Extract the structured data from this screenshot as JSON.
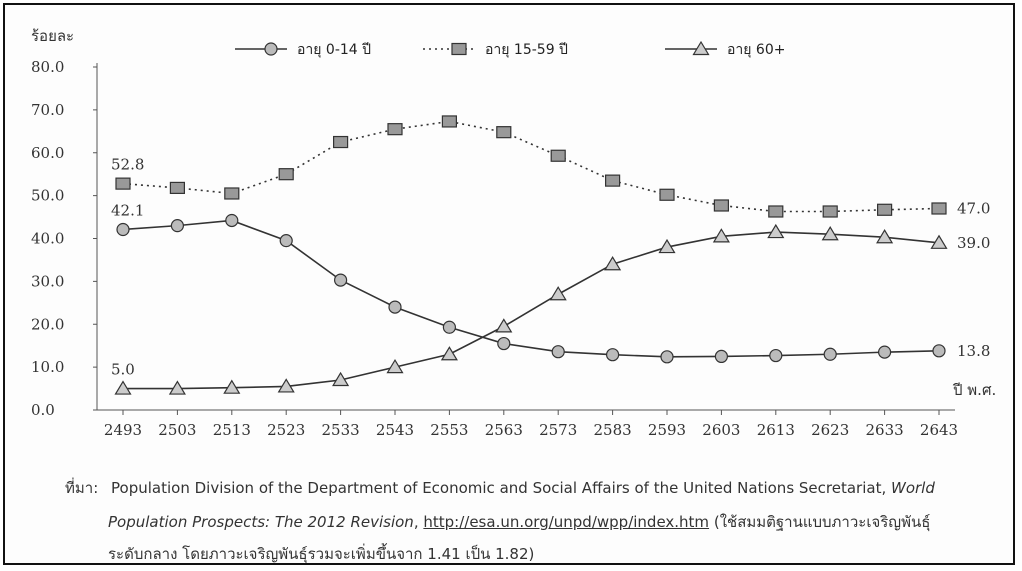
{
  "chart_data": {
    "type": "line",
    "ylabel": "ร้อยละ",
    "xlabel": "ปี พ.ศ.",
    "x": [
      2493,
      2503,
      2513,
      2523,
      2533,
      2543,
      2553,
      2563,
      2573,
      2583,
      2593,
      2603,
      2613,
      2623,
      2633,
      2643
    ],
    "yticks": [
      "0.0",
      "10.0",
      "20.0",
      "30.0",
      "40.0",
      "50.0",
      "60.0",
      "70.0",
      "80.0"
    ],
    "ylim": [
      0,
      80
    ],
    "grid": false,
    "legend_position": "top",
    "series": [
      {
        "name": "อายุ 0-14 ปี",
        "line_style": "solid",
        "marker": "circle",
        "values": [
          42.1,
          43.0,
          44.2,
          39.5,
          30.3,
          24.0,
          19.3,
          15.5,
          13.6,
          12.9,
          12.4,
          12.5,
          12.7,
          13.0,
          13.5,
          13.8
        ]
      },
      {
        "name": "อายุ 15-59 ปี",
        "line_style": "dotted",
        "marker": "square",
        "values": [
          52.8,
          51.8,
          50.5,
          55.0,
          62.5,
          65.5,
          67.3,
          64.8,
          59.3,
          53.5,
          50.2,
          47.7,
          46.3,
          46.3,
          46.7,
          47.0
        ]
      },
      {
        "name": "อายุ 60+",
        "line_style": "solid",
        "marker": "triangle",
        "values": [
          5.0,
          5.0,
          5.2,
          5.5,
          7.0,
          10.0,
          13.0,
          19.5,
          27.0,
          34.0,
          38.0,
          40.5,
          41.5,
          41.0,
          40.3,
          39.0
        ]
      }
    ],
    "annotations": [
      {
        "text": "52.8",
        "series": 1,
        "point": 0
      },
      {
        "text": "42.1",
        "series": 0,
        "point": 0
      },
      {
        "text": "5.0",
        "series": 2,
        "point": 0
      },
      {
        "text": "47.0",
        "series": 1,
        "point": 15
      },
      {
        "text": "39.0",
        "series": 2,
        "point": 15
      },
      {
        "text": "13.8",
        "series": 0,
        "point": 15
      }
    ]
  },
  "source": {
    "label": "ที่มา:",
    "line1_pre": "Population Division of the Department of Economic and Social Affairs of the United Nations Secretariat,",
    "line1_italic": "World",
    "line2_italic": "Population Prospects: The 2012 Revision",
    "line2_sep": ",",
    "line2_link": "http://esa.un.org/unpd/wpp/index.htm",
    "line2_post": "(ใช้สมมติฐานแบบภาวะเจริญพันธุ์",
    "line3": "ระดับกลาง โดยภาวะเจริญพันธุ์รวมจะเพิ่มขึ้นจาก 1.41 เป็น 1.82)"
  }
}
